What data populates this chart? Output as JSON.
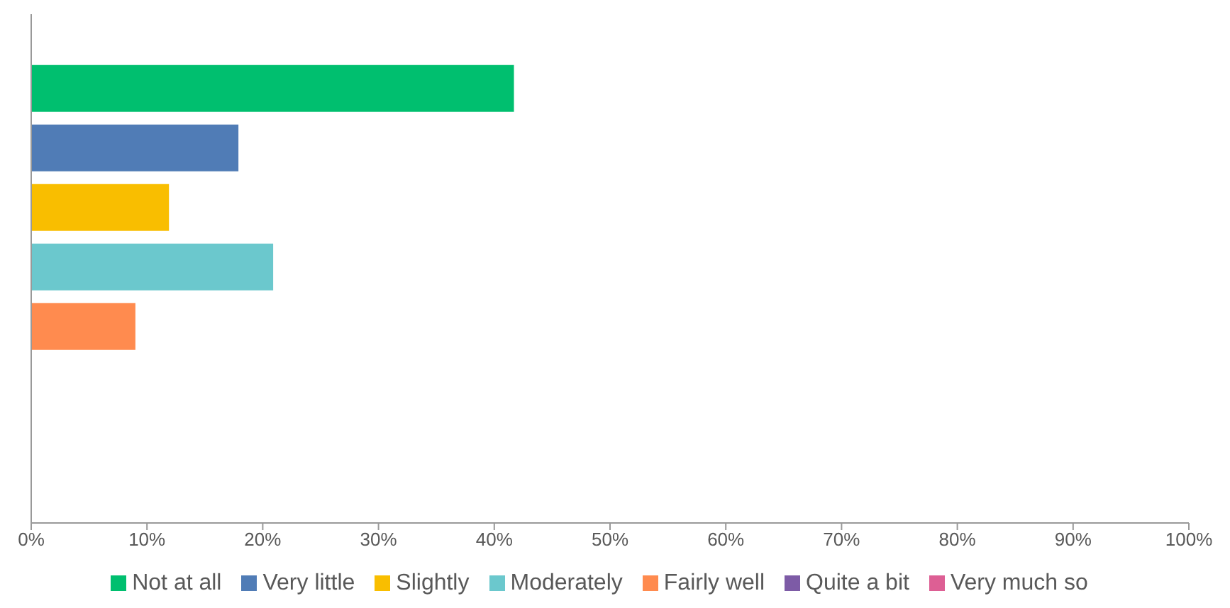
{
  "chart_data": {
    "type": "bar",
    "orientation": "horizontal",
    "categories": [
      null
    ],
    "series": [
      {
        "name": "Not at all",
        "color": "#00bf6f",
        "values": [
          41.7
        ]
      },
      {
        "name": "Very little",
        "color": "#507cb6",
        "values": [
          17.9
        ]
      },
      {
        "name": "Slightly",
        "color": "#f9be00",
        "values": [
          11.9
        ]
      },
      {
        "name": "Moderately",
        "color": "#6bc8cd",
        "values": [
          20.9
        ]
      },
      {
        "name": "Fairly well",
        "color": "#ff8b4f",
        "values": [
          9.0
        ]
      },
      {
        "name": "Quite a bit",
        "color": "#7d5ba6",
        "values": [
          0
        ]
      },
      {
        "name": "Very much so",
        "color": "#dd5f94",
        "values": [
          0
        ]
      }
    ],
    "xlim": [
      0,
      100
    ],
    "xticks": [
      {
        "value": 0,
        "label": "0%"
      },
      {
        "value": 10,
        "label": "10%"
      },
      {
        "value": 20,
        "label": "20%"
      },
      {
        "value": 30,
        "label": "30%"
      },
      {
        "value": 40,
        "label": "40%"
      },
      {
        "value": 50,
        "label": "50%"
      },
      {
        "value": 60,
        "label": "60%"
      },
      {
        "value": 70,
        "label": "70%"
      },
      {
        "value": 80,
        "label": "80%"
      },
      {
        "value": 90,
        "label": "90%"
      },
      {
        "value": 100,
        "label": "100%"
      }
    ],
    "grid": false,
    "legend": "bottom"
  }
}
